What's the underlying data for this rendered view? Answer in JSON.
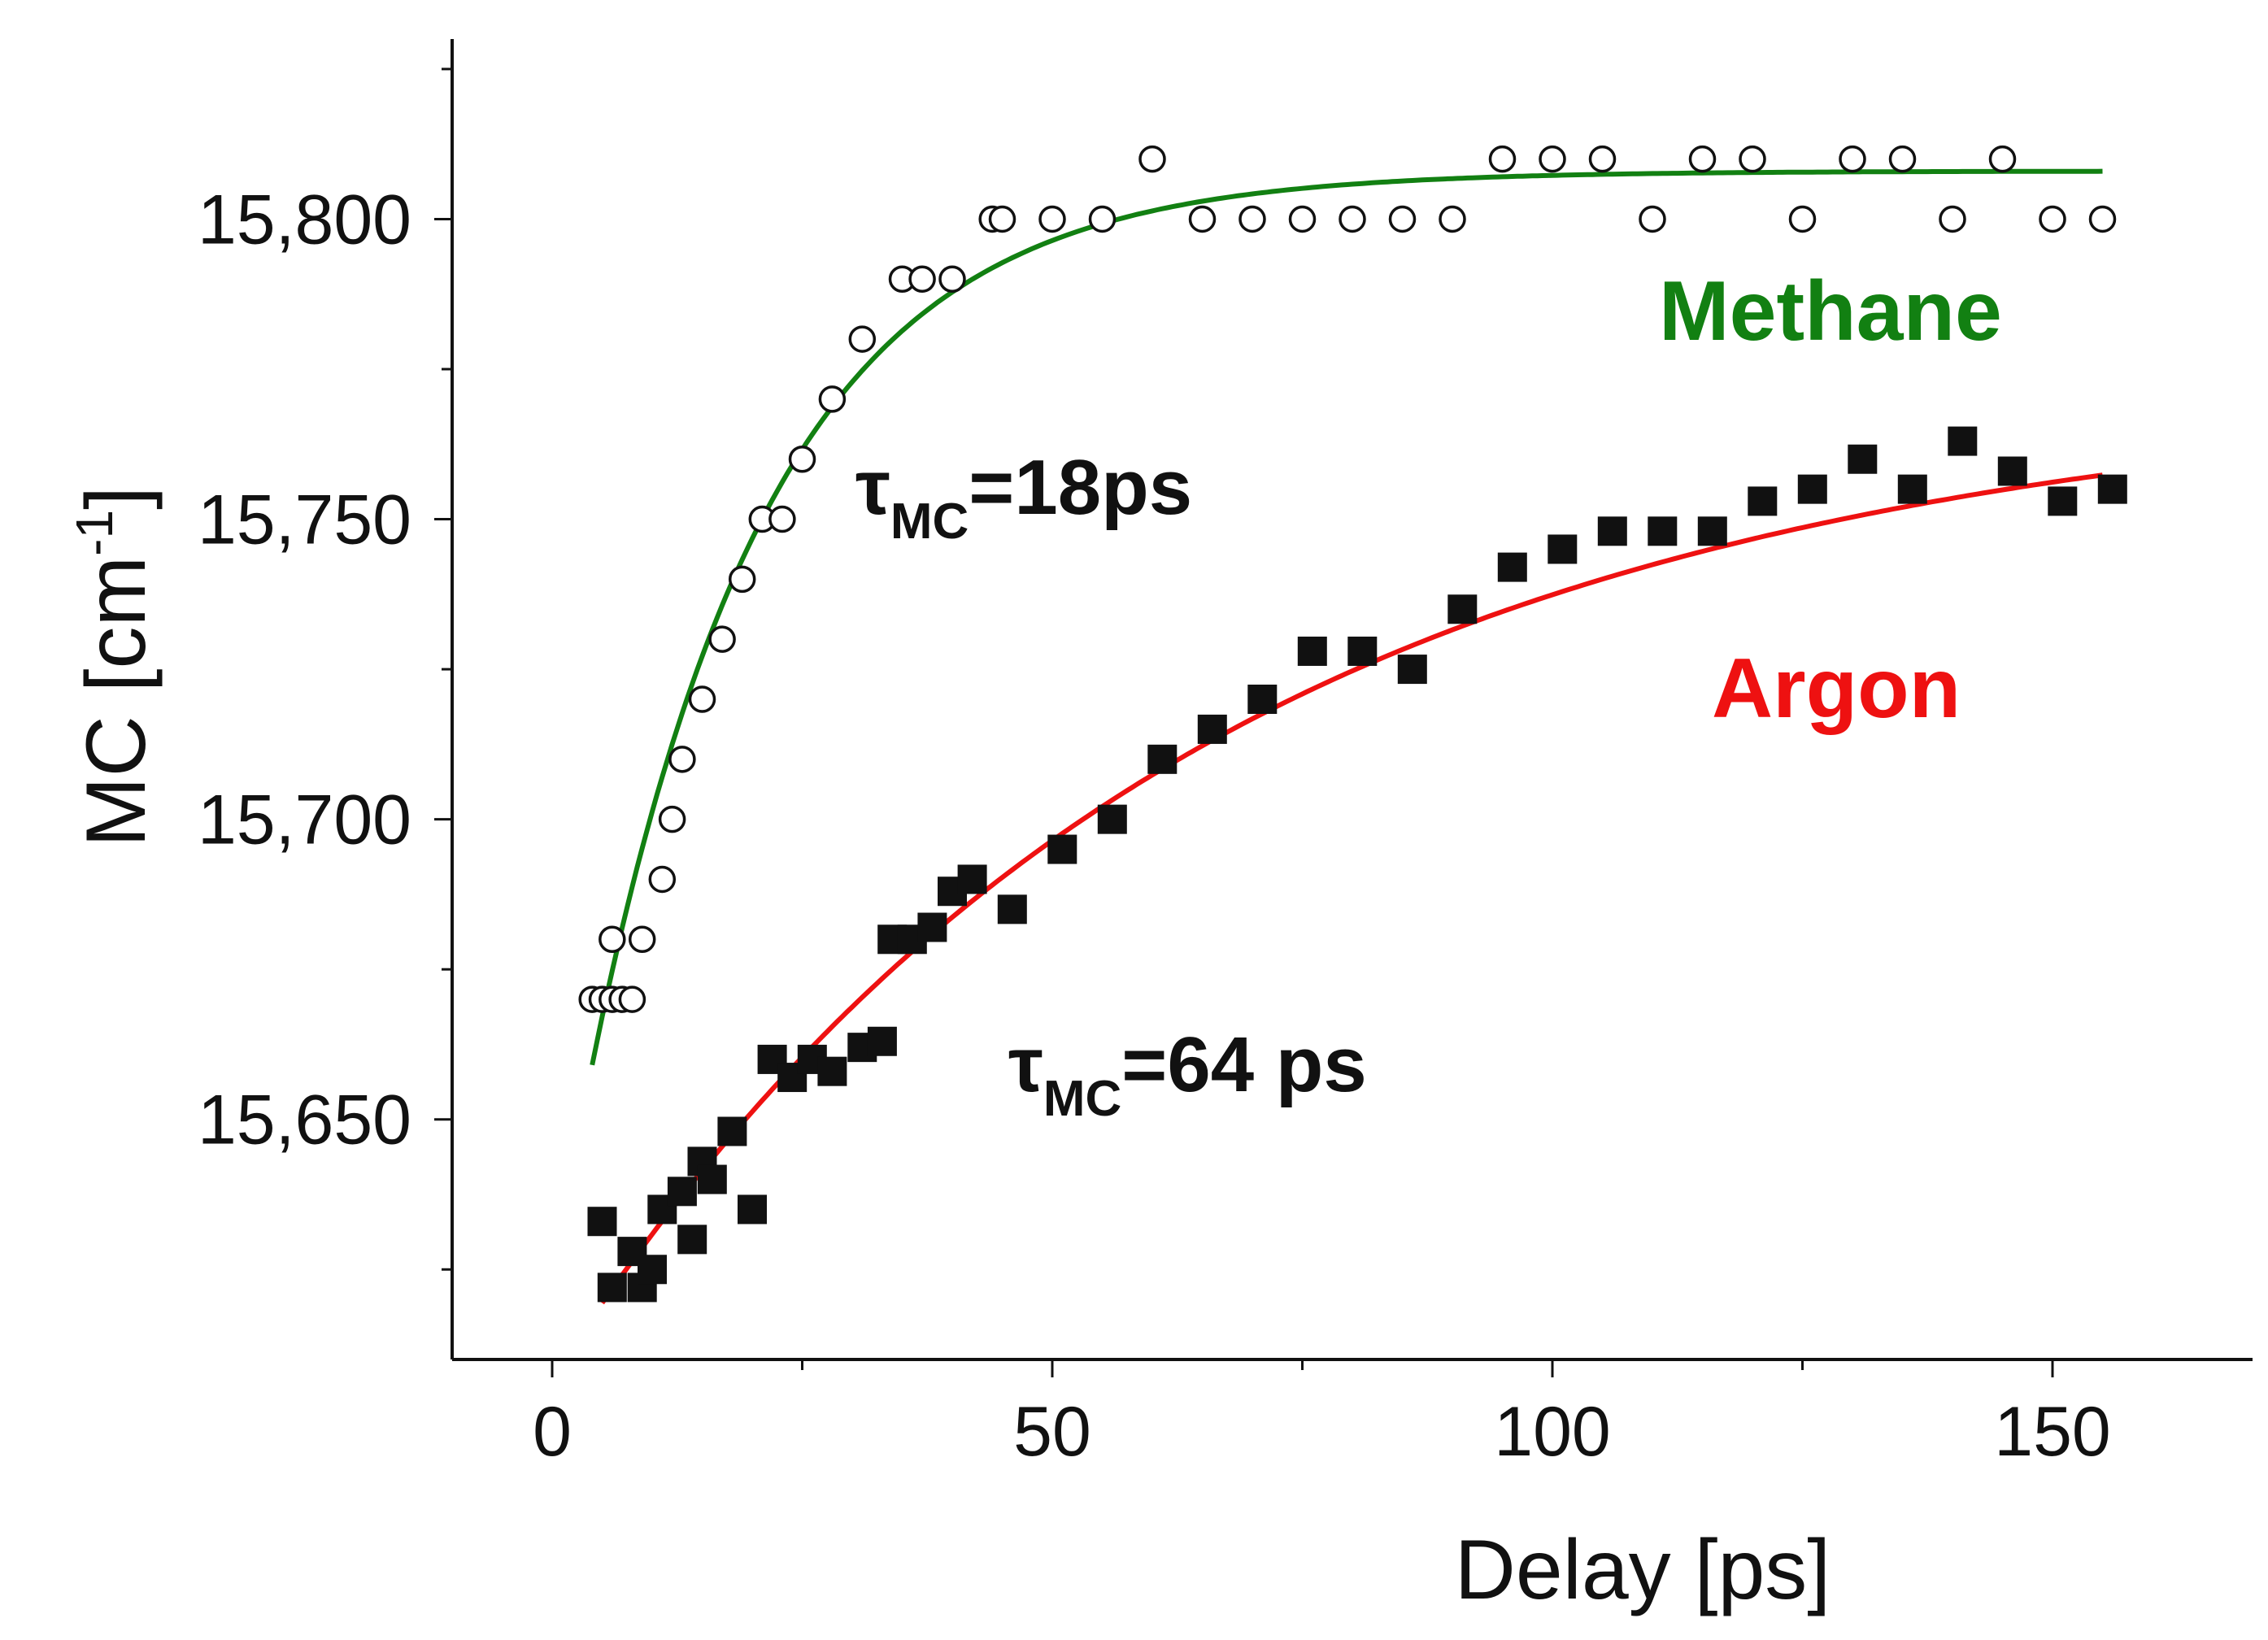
{
  "chart_data": {
    "type": "scatter",
    "title": "",
    "xlabel": "Delay [ps]",
    "ylabel": "MC [cm",
    "ylabel_unit_sup": "-1",
    "ylabel_close": "]",
    "xlim": [
      -10,
      170
    ],
    "ylim": [
      15610,
      15830
    ],
    "xticks": [
      0,
      50,
      100,
      150
    ],
    "xtick_labels": [
      "0",
      "50",
      "100",
      "150"
    ],
    "yticks": [
      15650,
      15700,
      15750,
      15800
    ],
    "ytick_labels": [
      "15,650",
      "15,700",
      "15,750",
      "15,800"
    ],
    "grid": false,
    "series": [
      {
        "name": "Methane",
        "color": "#128012",
        "marker": "open-circle",
        "tau": 18,
        "fit": {
          "y_inf": 15808,
          "amplitude": 186,
          "tau": 18,
          "x_range": [
            4,
            155
          ]
        },
        "points": [
          [
            4,
            15670
          ],
          [
            5,
            15670
          ],
          [
            6,
            15680
          ],
          [
            6,
            15670
          ],
          [
            7,
            15670
          ],
          [
            8,
            15670
          ],
          [
            9,
            15680
          ],
          [
            11,
            15690
          ],
          [
            12,
            15700
          ],
          [
            13,
            15710
          ],
          [
            15,
            15720
          ],
          [
            17,
            15730
          ],
          [
            19,
            15740
          ],
          [
            21,
            15750
          ],
          [
            23,
            15750
          ],
          [
            25,
            15760
          ],
          [
            28,
            15770
          ],
          [
            31,
            15780
          ],
          [
            35,
            15790
          ],
          [
            37,
            15790
          ],
          [
            40,
            15790
          ],
          [
            44,
            15800
          ],
          [
            45,
            15800
          ],
          [
            50,
            15800
          ],
          [
            55,
            15800
          ],
          [
            60,
            15810
          ],
          [
            65,
            15800
          ],
          [
            70,
            15800
          ],
          [
            75,
            15800
          ],
          [
            80,
            15800
          ],
          [
            85,
            15800
          ],
          [
            90,
            15800
          ],
          [
            95,
            15810
          ],
          [
            100,
            15810
          ],
          [
            105,
            15810
          ],
          [
            110,
            15800
          ],
          [
            115,
            15810
          ],
          [
            120,
            15810
          ],
          [
            125,
            15800
          ],
          [
            130,
            15810
          ],
          [
            135,
            15810
          ],
          [
            140,
            15800
          ],
          [
            145,
            15810
          ],
          [
            150,
            15800
          ],
          [
            155,
            15800
          ]
        ]
      },
      {
        "name": "Argon",
        "color": "#ee1111",
        "marker": "filled-square",
        "tau": 64,
        "fit": {
          "y_inf": 15772,
          "amplitude": 165,
          "tau": 64,
          "x_range": [
            5,
            155
          ]
        },
        "points": [
          [
            5,
            15633
          ],
          [
            6,
            15622
          ],
          [
            8,
            15628
          ],
          [
            9,
            15622
          ],
          [
            10,
            15625
          ],
          [
            11,
            15635
          ],
          [
            13,
            15638
          ],
          [
            14,
            15630
          ],
          [
            15,
            15643
          ],
          [
            16,
            15640
          ],
          [
            18,
            15648
          ],
          [
            20,
            15635
          ],
          [
            22,
            15660
          ],
          [
            24,
            15657
          ],
          [
            26,
            15660
          ],
          [
            28,
            15658
          ],
          [
            31,
            15662
          ],
          [
            33,
            15663
          ],
          [
            34,
            15680
          ],
          [
            36,
            15680
          ],
          [
            38,
            15682
          ],
          [
            40,
            15688
          ],
          [
            42,
            15690
          ],
          [
            46,
            15685
          ],
          [
            51,
            15695
          ],
          [
            56,
            15700
          ],
          [
            61,
            15710
          ],
          [
            66,
            15715
          ],
          [
            71,
            15720
          ],
          [
            76,
            15728
          ],
          [
            81,
            15728
          ],
          [
            86,
            15725
          ],
          [
            91,
            15735
          ],
          [
            96,
            15742
          ],
          [
            101,
            15745
          ],
          [
            106,
            15748
          ],
          [
            111,
            15748
          ],
          [
            116,
            15748
          ],
          [
            121,
            15753
          ],
          [
            126,
            15755
          ],
          [
            131,
            15760
          ],
          [
            136,
            15755
          ],
          [
            141,
            15763
          ],
          [
            146,
            15758
          ],
          [
            151,
            15753
          ],
          [
            156,
            15755
          ]
        ]
      }
    ],
    "annotations": {
      "methane_tau_symbol": "τ",
      "methane_tau_sub": "MC",
      "methane_tau_value": "=18ps",
      "argon_tau_symbol": "τ",
      "argon_tau_sub": "MC",
      "argon_tau_value": "=64 ps"
    },
    "legend": {
      "placement": "inline labels at right"
    }
  }
}
